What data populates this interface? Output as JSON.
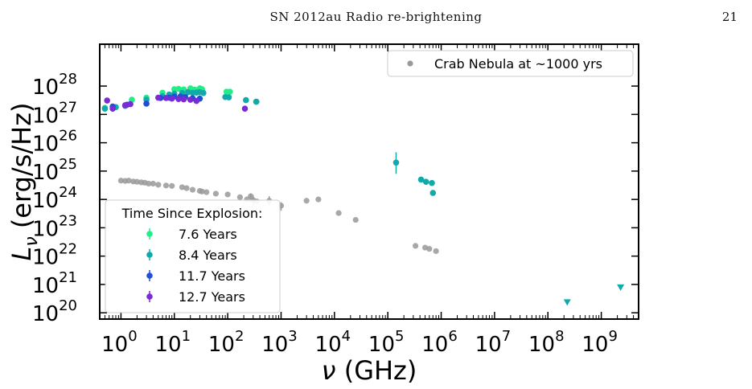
{
  "header": {
    "running_title": "SN 2012au Radio re-brightening",
    "page_number": "21"
  },
  "chart_data": {
    "type": "scatter",
    "title": "",
    "xlabel": "ν (GHz)",
    "ylabel": "Lν (erg/s/Hz)",
    "x_scale": "log",
    "y_scale": "log",
    "xlim": [
      0.4,
      5000000000
    ],
    "ylim": [
      60000000000000000000,
      300000000000000000000000000000
    ],
    "x_ticks": [
      {
        "value": 1,
        "base": "10",
        "exp": "0"
      },
      {
        "value": 10,
        "base": "10",
        "exp": "1"
      },
      {
        "value": 100,
        "base": "10",
        "exp": "2"
      },
      {
        "value": 1000,
        "base": "10",
        "exp": "3"
      },
      {
        "value": 10000,
        "base": "10",
        "exp": "4"
      },
      {
        "value": 100000,
        "base": "10",
        "exp": "5"
      },
      {
        "value": 1000000,
        "base": "10",
        "exp": "6"
      },
      {
        "value": 10000000,
        "base": "10",
        "exp": "7"
      },
      {
        "value": 100000000,
        "base": "10",
        "exp": "8"
      },
      {
        "value": 1000000000,
        "base": "10",
        "exp": "9"
      }
    ],
    "y_ticks": [
      {
        "value": 1e+20,
        "base": "10",
        "exp": "20"
      },
      {
        "value": 1e+21,
        "base": "10",
        "exp": "21"
      },
      {
        "value": 1e+22,
        "base": "10",
        "exp": "22"
      },
      {
        "value": 1e+23,
        "base": "10",
        "exp": "23"
      },
      {
        "value": 1e+24,
        "base": "10",
        "exp": "24"
      },
      {
        "value": 1e+25,
        "base": "10",
        "exp": "25"
      },
      {
        "value": 1e+26,
        "base": "10",
        "exp": "26"
      },
      {
        "value": 1e+27,
        "base": "10",
        "exp": "27"
      },
      {
        "value": 1e+28,
        "base": "10",
        "exp": "28"
      }
    ],
    "legend_series_title": "Time Since Explosion:",
    "legend_series_placement": "lower-left",
    "legend_crab_placement": "upper-right",
    "grid": false,
    "series": [
      {
        "name": "7.6 Years",
        "color": "#22ee88",
        "points": [
          [
            0.5,
            1.7e+27
          ],
          [
            1.6,
            3.3e+27
          ],
          [
            3.0,
            3.9e+27
          ],
          [
            6.0,
            5.8e+27
          ],
          [
            10.0,
            7.7e+27
          ],
          [
            12.0,
            8e+27
          ],
          [
            15.0,
            7.6e+27
          ],
          [
            20.0,
            8.3e+27
          ],
          [
            24.0,
            7.5e+27
          ],
          [
            30.0,
            8.3e+27
          ],
          [
            33.0,
            7.8e+27
          ],
          [
            95.0,
            6.3e+27
          ],
          [
            110.0,
            6.3e+27
          ],
          [
            340.0,
            2.8e+27
          ]
        ]
      },
      {
        "name": "8.4 Years",
        "color": "#11aaaa",
        "points": [
          [
            0.5,
            1.6e+27
          ],
          [
            0.8,
            1.8e+27
          ],
          [
            1.2,
            2e+27
          ],
          [
            3.0,
            3.3e+27
          ],
          [
            6.0,
            4.4e+27
          ],
          [
            8.0,
            5e+27
          ],
          [
            10.0,
            5.4e+27
          ],
          [
            14.0,
            5.7e+27
          ],
          [
            18.0,
            6.1e+27
          ],
          [
            22.0,
            5.8e+27
          ],
          [
            26.0,
            5.9e+27
          ],
          [
            30.0,
            6.1e+27
          ],
          [
            35.0,
            5.7e+27
          ],
          [
            90.0,
            4.1e+27
          ],
          [
            105.0,
            4e+27
          ],
          [
            220.0,
            3.2e+27
          ],
          [
            345.0,
            2.8e+27
          ],
          [
            143000.0,
            2e+25
          ],
          [
            420000.0,
            5e+24
          ],
          [
            520000.0,
            4.2e+24
          ],
          [
            670000.0,
            3.8e+24
          ],
          [
            700000.0,
            1.7e+24
          ]
        ],
        "errors": [
          [
            143000.0,
            8e+24,
            4.6e+25
          ]
        ],
        "upper_limits": [
          [
            230000000.0,
            2.3e+20
          ],
          [
            2300000000.0,
            7.7e+20
          ]
        ]
      },
      {
        "name": "11.7 Years",
        "color": "#1f4fd6",
        "points": [
          [
            0.7,
            1.9e+27
          ],
          [
            1.3,
            2.2e+27
          ],
          [
            3.0,
            2.4e+27
          ],
          [
            5.5,
            3.8e+27
          ],
          [
            8.0,
            3.9e+27
          ],
          [
            10.0,
            4.3e+27
          ],
          [
            13.0,
            4.3e+27
          ],
          [
            16.0,
            4.1e+27
          ],
          [
            22.0,
            3.7e+27
          ],
          [
            30.0,
            3.6e+27
          ]
        ]
      },
      {
        "name": "12.7 Years",
        "color": "#7a2bd6",
        "points": [
          [
            0.55,
            3.1e+27
          ],
          [
            0.7,
            1.6e+27
          ],
          [
            1.2,
            2.1e+27
          ],
          [
            1.5,
            2.3e+27
          ],
          [
            5.0,
            3.9e+27
          ],
          [
            7.0,
            3.8e+27
          ],
          [
            9.0,
            3.6e+27
          ],
          [
            12.0,
            3.5e+27
          ],
          [
            15.0,
            3.4e+27
          ],
          [
            20.0,
            3.3e+27
          ],
          [
            26.0,
            3e+27
          ],
          [
            210.0,
            1.6e+27
          ]
        ]
      }
    ],
    "crab": {
      "name": "Crab Nebula at ~1000 yrs",
      "color": "#999999",
      "points": [
        [
          1.0,
          4.6e+24
        ],
        [
          1.2,
          4.5e+24
        ],
        [
          1.4,
          4.6e+24
        ],
        [
          1.7,
          4.3e+24
        ],
        [
          2.0,
          4.2e+24
        ],
        [
          2.4,
          4e+24
        ],
        [
          2.8,
          3.9e+24
        ],
        [
          3.3,
          3.6e+24
        ],
        [
          4.0,
          3.6e+24
        ],
        [
          5.0,
          3.3e+24
        ],
        [
          7.0,
          3.1e+24
        ],
        [
          9.0,
          3e+24
        ],
        [
          14.0,
          2.7e+24
        ],
        [
          17.0,
          2.5e+24
        ],
        [
          22.0,
          2.2e+24
        ],
        [
          30.0,
          2e+24
        ],
        [
          33.0,
          1.9e+24
        ],
        [
          40.0,
          1.8e+24
        ],
        [
          60.0,
          1.6e+24
        ],
        [
          100.0,
          1.5e+24
        ],
        [
          170.0,
          1.2e+24
        ],
        [
          230.0,
          1e+24
        ],
        [
          270.0,
          1.3e+24
        ],
        [
          300.0,
          9.5e+23
        ],
        [
          350.0,
          8.5e+23
        ],
        [
          600.0,
          9e+23
        ],
        [
          1000.0,
          6e+23
        ],
        [
          3000.0,
          9e+23
        ],
        [
          5000.0,
          1e+24
        ],
        [
          12000.0,
          3.3e+23
        ],
        [
          25000.0,
          1.9e+23
        ],
        [
          330000.0,
          2.3e+22
        ],
        [
          500000.0,
          2e+22
        ],
        [
          600000.0,
          1.8e+22
        ],
        [
          800000.0,
          1.5e+22
        ]
      ],
      "errors": [
        [
          270.0,
          8e+23,
          1.6e+24
        ],
        [
          300.0,
          6e+23,
          1.4e+24
        ],
        [
          600.0,
          6e+23,
          1.3e+24
        ],
        [
          1000.0,
          4e+23,
          8e+23
        ]
      ]
    }
  }
}
